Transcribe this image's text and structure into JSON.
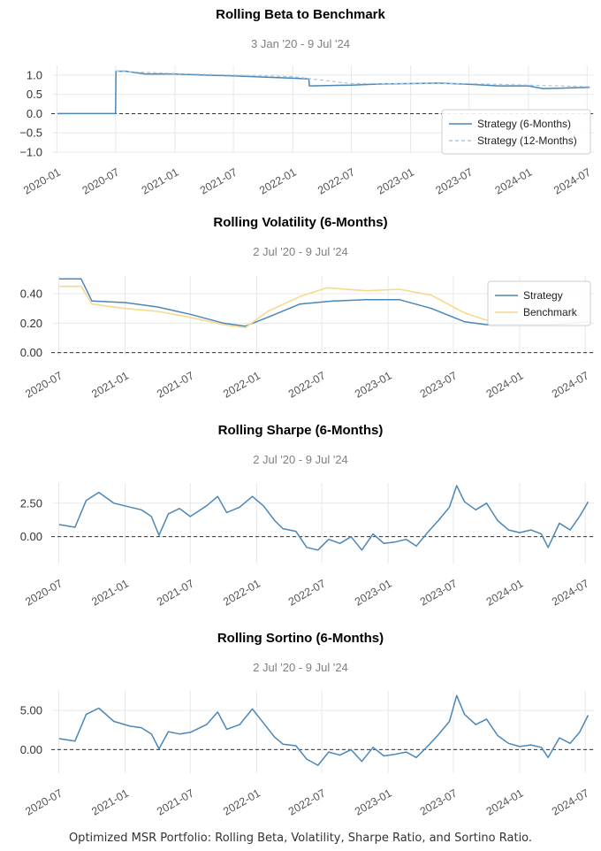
{
  "caption": "Optimized MSR Portfolio: Rolling Beta, Volatility, Sharpe Ratio, and Sortino Ratio.",
  "colors": {
    "strategy": "#4a87b8",
    "strategy_dashed": "#a9c8e2",
    "benchmark": "#f7d98a",
    "grid": "#e8e8e8",
    "zero_line": "#333333"
  },
  "chart_data": [
    {
      "type": "line",
      "title": "Rolling Beta to Benchmark",
      "subtitle": "3 Jan '20 -  9 Jul '24",
      "x_range": [
        "2020-01-03",
        "2024-07-09"
      ],
      "ylim": [
        -1.0,
        1.25
      ],
      "yticks": [
        1.0,
        0.5,
        0.0,
        -0.5,
        -1.0
      ],
      "ytick_labels": [
        "1.0",
        "0.5",
        "0.0",
        "−0.5",
        "−1.0"
      ],
      "xtick_labels": [
        "2020-01",
        "2020-07",
        "2021-01",
        "2021-07",
        "2022-01",
        "2022-07",
        "2023-01",
        "2023-07",
        "2024-01",
        "2024-07"
      ],
      "zero_line": true,
      "grid": true,
      "legend": "bottom-right",
      "series": [
        {
          "name": "Strategy (6-Months)",
          "style": "solid",
          "x": [
            "2020-01-03",
            "2020-07-01",
            "2020-07-02",
            "2020-08-01",
            "2020-10-01",
            "2021-01-01",
            "2021-04-01",
            "2021-07-01",
            "2021-10-01",
            "2022-01-01",
            "2022-02-20",
            "2022-02-21",
            "2022-07-01",
            "2022-10-01",
            "2023-01-01",
            "2023-04-01",
            "2023-07-01",
            "2023-10-01",
            "2024-01-01",
            "2024-02-15",
            "2024-04-01",
            "2024-07-09"
          ],
          "y": [
            0.0,
            0.0,
            1.1,
            1.1,
            1.03,
            1.03,
            1.0,
            0.98,
            0.95,
            0.92,
            0.9,
            0.72,
            0.74,
            0.77,
            0.78,
            0.79,
            0.76,
            0.72,
            0.72,
            0.65,
            0.66,
            0.68
          ]
        },
        {
          "name": "Strategy (12-Months)",
          "style": "dashed",
          "x": [
            "2020-07-02",
            "2021-01-01",
            "2021-07-01",
            "2022-01-01",
            "2022-07-01",
            "2023-01-01",
            "2023-07-01",
            "2024-01-01",
            "2024-07-09"
          ],
          "y": [
            1.1,
            1.04,
            1.0,
            0.96,
            0.78,
            0.78,
            0.78,
            0.74,
            0.7
          ]
        }
      ]
    },
    {
      "type": "line",
      "title": "Rolling Volatility (6-Months)",
      "subtitle": "2 Jul '20 -  9 Jul '24",
      "x_range": [
        "2020-07-02",
        "2024-07-09"
      ],
      "ylim": [
        -0.02,
        0.52
      ],
      "yticks": [
        0.4,
        0.2,
        0.0
      ],
      "ytick_labels": [
        "0.40",
        "0.20",
        "0.00"
      ],
      "xtick_labels": [
        "2020-07",
        "2021-01",
        "2021-07",
        "2022-01",
        "2022-07",
        "2023-01",
        "2023-07",
        "2024-01",
        "2024-07"
      ],
      "zero_line": true,
      "grid": true,
      "legend": "top-right",
      "series": [
        {
          "name": "Strategy",
          "x": [
            "2020-07-02",
            "2020-09-01",
            "2020-10-01",
            "2021-01-01",
            "2021-04-01",
            "2021-07-01",
            "2021-10-01",
            "2021-12-01",
            "2022-02-01",
            "2022-05-01",
            "2022-08-01",
            "2022-11-01",
            "2023-02-01",
            "2023-05-01",
            "2023-08-01",
            "2023-10-01",
            "2024-01-01",
            "2024-04-01",
            "2024-07-09"
          ],
          "y": [
            0.5,
            0.5,
            0.35,
            0.34,
            0.31,
            0.26,
            0.2,
            0.18,
            0.24,
            0.33,
            0.35,
            0.36,
            0.36,
            0.3,
            0.21,
            0.19,
            0.19,
            0.19,
            0.21
          ]
        },
        {
          "name": "Benchmark",
          "x": [
            "2020-07-02",
            "2020-09-01",
            "2020-10-01",
            "2021-01-01",
            "2021-04-01",
            "2021-07-01",
            "2021-10-01",
            "2021-12-01",
            "2022-02-01",
            "2022-05-01",
            "2022-07-15",
            "2022-11-01",
            "2023-02-01",
            "2023-05-01",
            "2023-08-01",
            "2023-10-01",
            "2024-01-01",
            "2024-04-01",
            "2024-07-09"
          ],
          "y": [
            0.45,
            0.45,
            0.33,
            0.3,
            0.28,
            0.24,
            0.19,
            0.17,
            0.28,
            0.38,
            0.44,
            0.42,
            0.43,
            0.39,
            0.27,
            0.22,
            0.22,
            0.21,
            0.22
          ]
        }
      ]
    },
    {
      "type": "line",
      "title": "Rolling Sharpe (6-Months)",
      "subtitle": "2 Jul '20 -  9 Jul '24",
      "x_range": [
        "2020-07-02",
        "2024-07-09"
      ],
      "ylim": [
        -2.0,
        4.0
      ],
      "yticks": [
        2.5,
        0.0
      ],
      "ytick_labels": [
        "2.50",
        "0.00"
      ],
      "xtick_labels": [
        "2020-07",
        "2021-01",
        "2021-07",
        "2022-01",
        "2022-07",
        "2023-01",
        "2023-07",
        "2024-01",
        "2024-07"
      ],
      "zero_line": true,
      "grid": true,
      "series": [
        {
          "name": "Strategy",
          "x": [
            "2020-07-02",
            "2020-08-15",
            "2020-09-15",
            "2020-10-20",
            "2020-12-01",
            "2021-01-15",
            "2021-02-15",
            "2021-03-15",
            "2021-04-05",
            "2021-05-01",
            "2021-06-01",
            "2021-07-01",
            "2021-08-15",
            "2021-09-15",
            "2021-10-10",
            "2021-11-15",
            "2021-12-20",
            "2022-01-20",
            "2022-02-20",
            "2022-03-15",
            "2022-04-20",
            "2022-05-20",
            "2022-06-20",
            "2022-07-20",
            "2022-08-20",
            "2022-09-20",
            "2022-10-20",
            "2022-11-20",
            "2022-12-20",
            "2023-01-20",
            "2023-02-20",
            "2023-03-20",
            "2023-04-20",
            "2023-05-20",
            "2023-06-20",
            "2023-07-10",
            "2023-08-01",
            "2023-09-01",
            "2023-10-01",
            "2023-11-01",
            "2023-12-01",
            "2024-01-01",
            "2024-02-01",
            "2024-03-01",
            "2024-03-20",
            "2024-04-20",
            "2024-05-20",
            "2024-06-15",
            "2024-07-09"
          ],
          "y": [
            0.9,
            0.7,
            2.7,
            3.3,
            2.5,
            2.2,
            2.0,
            1.5,
            0.1,
            1.7,
            2.1,
            1.5,
            2.3,
            3.0,
            1.8,
            2.2,
            3.0,
            2.3,
            1.2,
            0.6,
            0.4,
            -0.8,
            -1.0,
            -0.2,
            -0.5,
            0.0,
            -1.0,
            0.2,
            -0.5,
            -0.4,
            -0.2,
            -0.7,
            0.3,
            1.2,
            2.2,
            3.8,
            2.6,
            2.0,
            2.5,
            1.2,
            0.5,
            0.3,
            0.5,
            0.2,
            -0.8,
            1.0,
            0.5,
            1.5,
            2.6
          ]
        }
      ]
    },
    {
      "type": "line",
      "title": "Rolling Sortino (6-Months)",
      "subtitle": "2 Jul '20 -  9 Jul '24",
      "x_range": [
        "2020-07-02",
        "2024-07-09"
      ],
      "ylim": [
        -3.0,
        7.5
      ],
      "yticks": [
        5.0,
        0.0
      ],
      "ytick_labels": [
        "5.00",
        "0.00"
      ],
      "xtick_labels": [
        "2020-07",
        "2021-01",
        "2021-07",
        "2022-01",
        "2022-07",
        "2023-01",
        "2023-07",
        "2024-01",
        "2024-07"
      ],
      "zero_line": true,
      "grid": true,
      "series": [
        {
          "name": "Strategy",
          "x": [
            "2020-07-02",
            "2020-08-15",
            "2020-09-15",
            "2020-10-20",
            "2020-12-01",
            "2021-01-15",
            "2021-02-15",
            "2021-03-15",
            "2021-04-05",
            "2021-05-01",
            "2021-06-01",
            "2021-07-01",
            "2021-08-15",
            "2021-09-15",
            "2021-10-10",
            "2021-11-15",
            "2021-12-20",
            "2022-01-20",
            "2022-02-20",
            "2022-03-15",
            "2022-04-20",
            "2022-05-20",
            "2022-06-20",
            "2022-07-20",
            "2022-08-20",
            "2022-09-20",
            "2022-10-20",
            "2022-11-20",
            "2022-12-20",
            "2023-01-20",
            "2023-02-20",
            "2023-03-20",
            "2023-04-20",
            "2023-05-20",
            "2023-06-20",
            "2023-07-10",
            "2023-08-01",
            "2023-09-01",
            "2023-10-01",
            "2023-11-01",
            "2023-12-01",
            "2024-01-01",
            "2024-02-01",
            "2024-03-01",
            "2024-03-20",
            "2024-04-20",
            "2024-05-20",
            "2024-06-15",
            "2024-07-09"
          ],
          "y": [
            1.4,
            1.1,
            4.5,
            5.3,
            3.6,
            3.0,
            2.8,
            2.0,
            0.1,
            2.3,
            2.0,
            2.2,
            3.2,
            4.8,
            2.6,
            3.2,
            5.2,
            3.4,
            1.6,
            0.7,
            0.5,
            -1.2,
            -2.0,
            -0.3,
            -0.7,
            0.0,
            -1.5,
            0.3,
            -0.8,
            -0.6,
            -0.3,
            -1.0,
            0.4,
            1.9,
            3.6,
            6.9,
            4.5,
            3.2,
            3.9,
            1.8,
            0.8,
            0.4,
            0.6,
            0.3,
            -1.0,
            1.5,
            0.8,
            2.2,
            4.4
          ]
        }
      ]
    }
  ]
}
